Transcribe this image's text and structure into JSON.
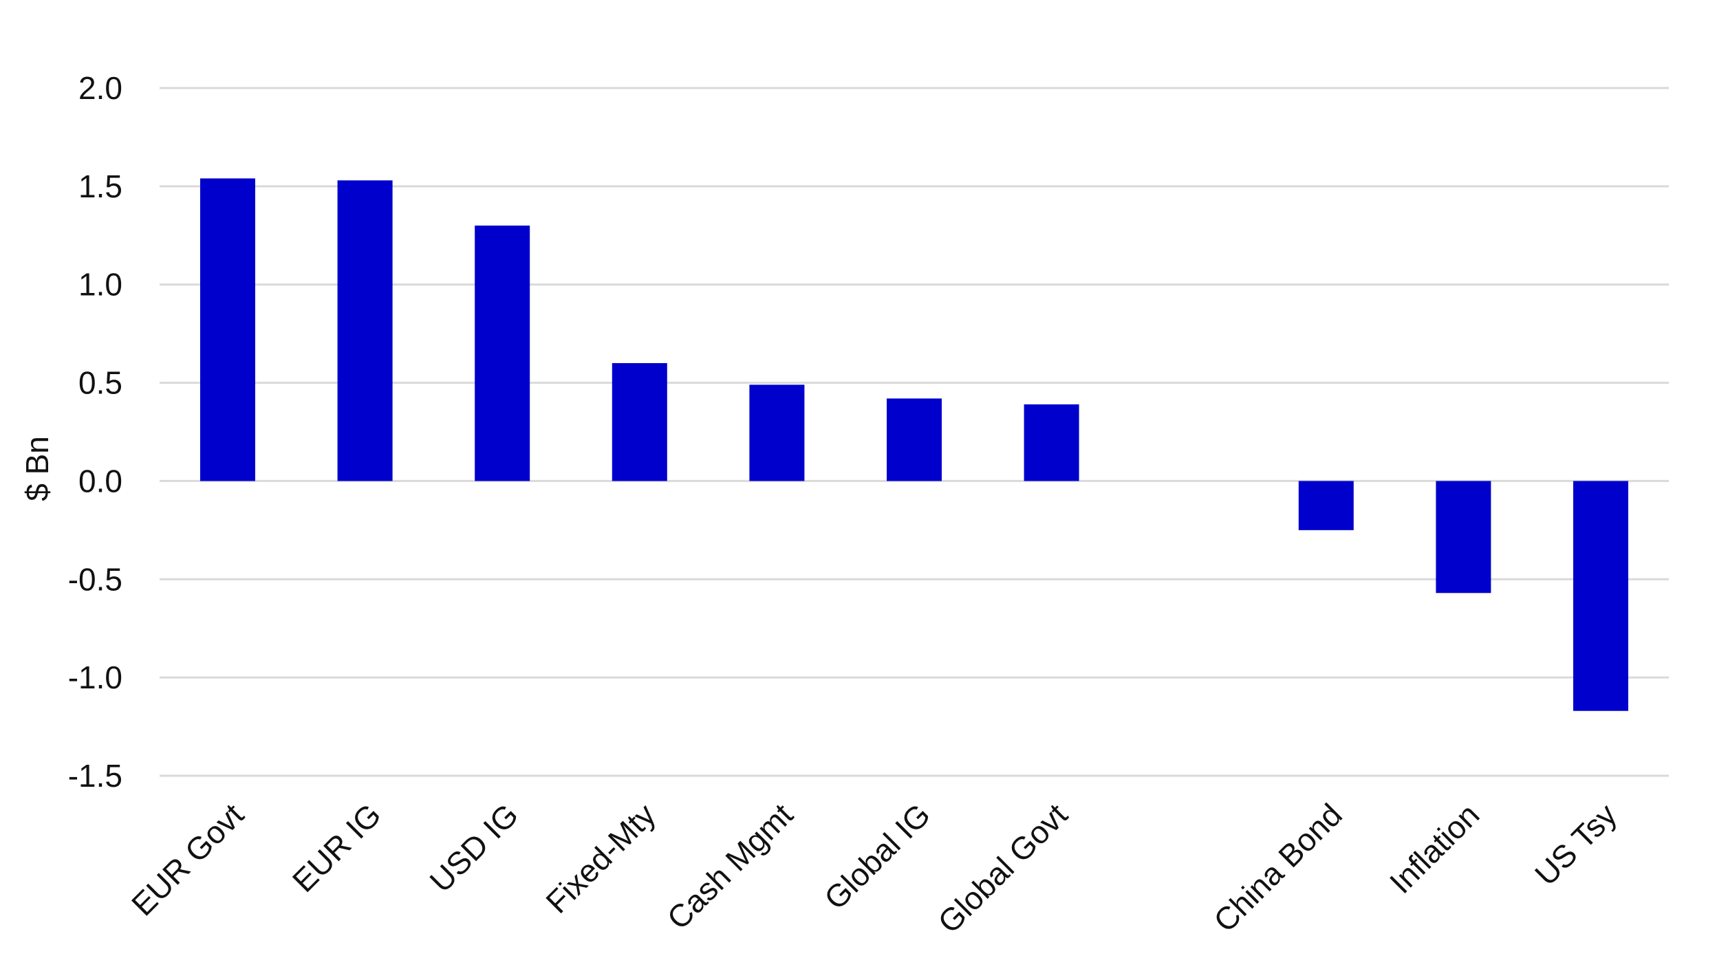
{
  "chart_data": {
    "type": "bar",
    "title": "",
    "xlabel": "",
    "ylabel": "$ Bn",
    "ylim": [
      -1.5,
      2.0
    ],
    "yticks": [
      "2.0",
      "1.5",
      "1.0",
      "0.5",
      "0.0",
      "-0.5",
      "-1.0",
      "-1.5"
    ],
    "ytick_values": [
      2.0,
      1.5,
      1.0,
      0.5,
      0.0,
      -0.5,
      -1.0,
      -1.5
    ],
    "categories": [
      "EUR Govt",
      "EUR IG",
      "USD IG",
      "Fixed-Mty",
      "Cash Mgmt",
      "Global IG",
      "Global Govt",
      "",
      "China Bond",
      "Inflation",
      "US Tsy"
    ],
    "values": [
      1.54,
      1.53,
      1.3,
      0.6,
      0.49,
      0.42,
      0.39,
      null,
      -0.25,
      -0.57,
      -1.17
    ],
    "grid": true,
    "legend": "none",
    "bar_color": "#0000cc",
    "grid_color": "#d9d9d9"
  }
}
